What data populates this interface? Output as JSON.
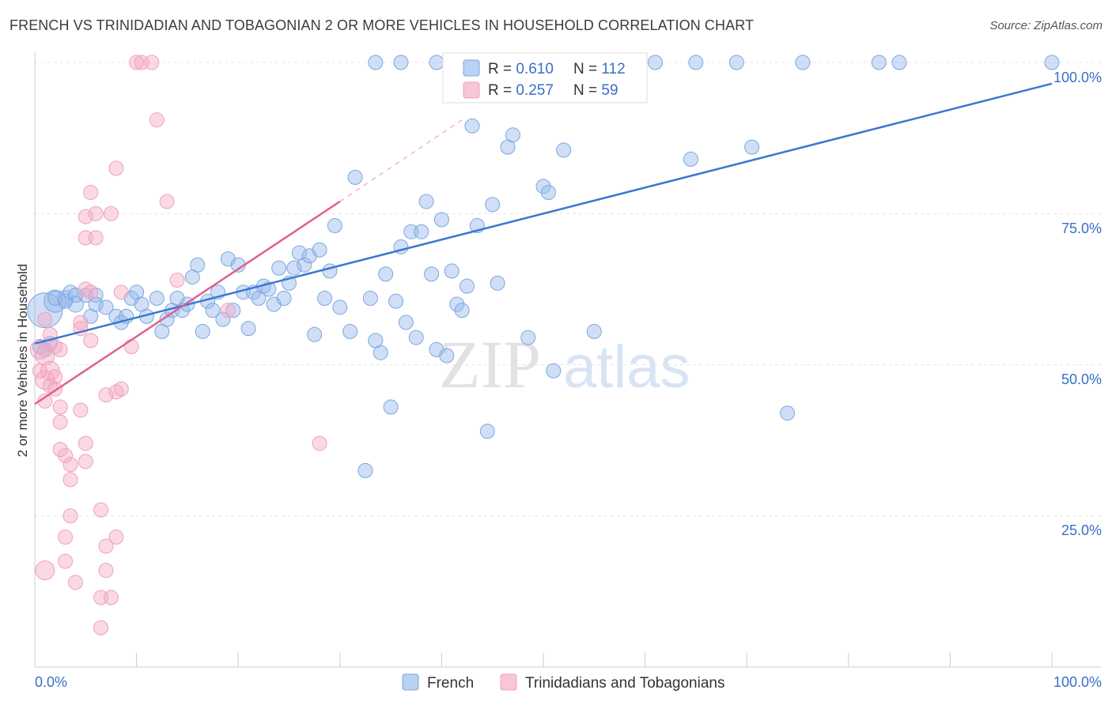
{
  "title": "FRENCH VS TRINIDADIAN AND TOBAGONIAN 2 OR MORE VEHICLES IN HOUSEHOLD CORRELATION CHART",
  "source": "Source: ZipAtlas.com",
  "watermark": {
    "zip": "ZIP",
    "atlas": "atlas"
  },
  "chart_data": {
    "type": "scatter",
    "ylabel": "2 or more Vehicles in Household",
    "xlim": [
      0,
      100
    ],
    "ylim": [
      0,
      100
    ],
    "x_tick_labels": [
      "0.0%",
      "100.0%"
    ],
    "y_ticks": [
      25,
      50,
      75,
      100
    ],
    "y_tick_labels": [
      "25.0%",
      "50.0%",
      "75.0%",
      "100.0%"
    ],
    "grid": true,
    "legend_position": "top-center",
    "stats": [
      {
        "r_label": "R = ",
        "r_value": "0.610",
        "n_label": "N = ",
        "n_value": "112"
      },
      {
        "r_label": "R = ",
        "r_value": "0.257",
        "n_label": "N = ",
        "n_value": "59"
      }
    ],
    "series": [
      {
        "name": "French",
        "color": "#7ba7e0",
        "line_color": "#3a78d0",
        "trend": {
          "x0": 0,
          "y0": 53.5,
          "x1": 100,
          "y1": 96.5
        },
        "points": [
          [
            1,
            59,
            22
          ],
          [
            2,
            60.5,
            14
          ],
          [
            3,
            61,
            10
          ],
          [
            4,
            60,
            10
          ],
          [
            5,
            61.5,
            9
          ],
          [
            6,
            61.5,
            9
          ],
          [
            5.5,
            58,
            9
          ],
          [
            6,
            60,
            9
          ],
          [
            7,
            59.5,
            9
          ],
          [
            8,
            58,
            9
          ],
          [
            8.5,
            57,
            9
          ],
          [
            9,
            58,
            9
          ],
          [
            9.5,
            61,
            9
          ],
          [
            10,
            62,
            9
          ],
          [
            10.5,
            60,
            9
          ],
          [
            11,
            58,
            9
          ],
          [
            12,
            61,
            9
          ],
          [
            12.5,
            55.5,
            9
          ],
          [
            13,
            57.5,
            9
          ],
          [
            13.5,
            59,
            9
          ],
          [
            14,
            61,
            9
          ],
          [
            14.5,
            59,
            9
          ],
          [
            15,
            60,
            9
          ],
          [
            15.5,
            64.5,
            9
          ],
          [
            16,
            66.5,
            9
          ],
          [
            16.5,
            55.5,
            9
          ],
          [
            17,
            60.5,
            9
          ],
          [
            17.5,
            59,
            9
          ],
          [
            18,
            62,
            9
          ],
          [
            18.5,
            57.5,
            9
          ],
          [
            19,
            67.5,
            9
          ],
          [
            19.5,
            59,
            9
          ],
          [
            20,
            66.5,
            9
          ],
          [
            20.5,
            62,
            9
          ],
          [
            21,
            56,
            9
          ],
          [
            21.5,
            62,
            9
          ],
          [
            22,
            61,
            9
          ],
          [
            22.5,
            63,
            9
          ],
          [
            23,
            62.5,
            9
          ],
          [
            23.5,
            60,
            9
          ],
          [
            24,
            66,
            9
          ],
          [
            24.5,
            61,
            9
          ],
          [
            25,
            63.5,
            9
          ],
          [
            25.5,
            66,
            9
          ],
          [
            26,
            68.5,
            9
          ],
          [
            26.5,
            66.5,
            9
          ],
          [
            27,
            68,
            9
          ],
          [
            27.5,
            55,
            9
          ],
          [
            28,
            69,
            9
          ],
          [
            28.5,
            61,
            9
          ],
          [
            29,
            65.5,
            9
          ],
          [
            29.5,
            73,
            9
          ],
          [
            30,
            59.5,
            9
          ],
          [
            31,
            55.5,
            9
          ],
          [
            31.5,
            81,
            9
          ],
          [
            32.5,
            32.5,
            9
          ],
          [
            33,
            61,
            9
          ],
          [
            33.5,
            54,
            9
          ],
          [
            34,
            52,
            9
          ],
          [
            34.5,
            65,
            9
          ],
          [
            35,
            43,
            9
          ],
          [
            35.5,
            60.5,
            9
          ],
          [
            36,
            69.5,
            9
          ],
          [
            36.5,
            57,
            9
          ],
          [
            37,
            72,
            9
          ],
          [
            37.5,
            54.5,
            9
          ],
          [
            38,
            72,
            9
          ],
          [
            38.5,
            77,
            9
          ],
          [
            39,
            65,
            9
          ],
          [
            39.5,
            52.5,
            9
          ],
          [
            40,
            74,
            9
          ],
          [
            40.5,
            51.5,
            9
          ],
          [
            41,
            65.5,
            9
          ],
          [
            41.5,
            60,
            9
          ],
          [
            42,
            59,
            9
          ],
          [
            42.5,
            63,
            9
          ],
          [
            43,
            89.5,
            9
          ],
          [
            43.5,
            73,
            9
          ],
          [
            44.5,
            39,
            9
          ],
          [
            45,
            76.5,
            9
          ],
          [
            45.5,
            63.5,
            9
          ],
          [
            46.5,
            86,
            9
          ],
          [
            47,
            88,
            9
          ],
          [
            48.5,
            54.5,
            9
          ],
          [
            50,
            79.5,
            9
          ],
          [
            50.5,
            78.5,
            9
          ],
          [
            51,
            49,
            9
          ],
          [
            52,
            85.5,
            9
          ],
          [
            53.5,
            100,
            9
          ],
          [
            55,
            55.5,
            9
          ],
          [
            57,
            100,
            9
          ],
          [
            61,
            100,
            9
          ],
          [
            64.5,
            84,
            9
          ],
          [
            65,
            100,
            9
          ],
          [
            69,
            100,
            9
          ],
          [
            70.5,
            86,
            9
          ],
          [
            74,
            42,
            9
          ],
          [
            75.5,
            100,
            9
          ],
          [
            83,
            100,
            9
          ],
          [
            85,
            100,
            9
          ],
          [
            100,
            100,
            9
          ],
          [
            0.5,
            53,
            9
          ],
          [
            1,
            52.5,
            9
          ],
          [
            1.5,
            53.5,
            9
          ],
          [
            2,
            61,
            9
          ],
          [
            3,
            60.5,
            9
          ],
          [
            3.5,
            62,
            9
          ],
          [
            4,
            61.5,
            9
          ],
          [
            33.5,
            100,
            9
          ],
          [
            36,
            100,
            9
          ],
          [
            39.5,
            100,
            9
          ],
          [
            46,
            100,
            9
          ]
        ]
      },
      {
        "name": "Trinidadians and Tobagonians",
        "color": "#f0a0bc",
        "line_color": "#e06090",
        "trend": {
          "x0": 0,
          "y0": 43.5,
          "x1": 30,
          "y1": 77
        },
        "trend_ext": {
          "x0": 30,
          "y0": 77,
          "x1": 42,
          "y1": 90.5
        },
        "points": [
          [
            0.5,
            52.5,
            12
          ],
          [
            1,
            51.5,
            12
          ],
          [
            1.5,
            49,
            12
          ],
          [
            1,
            47.5,
            12
          ],
          [
            1.5,
            46.5,
            9
          ],
          [
            2,
            46,
            9
          ],
          [
            2.5,
            43,
            9
          ],
          [
            1,
            57.5,
            9
          ],
          [
            2,
            53,
            9
          ],
          [
            2.5,
            52.5,
            9
          ],
          [
            2.5,
            40.5,
            9
          ],
          [
            3,
            35,
            9
          ],
          [
            3.5,
            33.5,
            9
          ],
          [
            3.5,
            31,
            9
          ],
          [
            3.5,
            25,
            9
          ],
          [
            3,
            21.5,
            9
          ],
          [
            3,
            17.5,
            9
          ],
          [
            1,
            16,
            12
          ],
          [
            4,
            14,
            9
          ],
          [
            4.5,
            56,
            9
          ],
          [
            4.5,
            57,
            9
          ],
          [
            4.5,
            42.5,
            9
          ],
          [
            5,
            62.5,
            9
          ],
          [
            5,
            74.5,
            9
          ],
          [
            5,
            71,
            9
          ],
          [
            5,
            37,
            9
          ],
          [
            5,
            34,
            9
          ],
          [
            5.5,
            78.5,
            9
          ],
          [
            5.5,
            62,
            9
          ],
          [
            5.5,
            54,
            9
          ],
          [
            6,
            75,
            9
          ],
          [
            6,
            71,
            9
          ],
          [
            6.5,
            26,
            9
          ],
          [
            6.5,
            6.5,
            9
          ],
          [
            6.5,
            11.5,
            9
          ],
          [
            7,
            45,
            9
          ],
          [
            7,
            20,
            9
          ],
          [
            7,
            16,
            9
          ],
          [
            7.5,
            75,
            9
          ],
          [
            7.5,
            11.5,
            9
          ],
          [
            8,
            82.5,
            9
          ],
          [
            8,
            45.5,
            9
          ],
          [
            8,
            21.5,
            9
          ],
          [
            8.5,
            62,
            9
          ],
          [
            8.5,
            46,
            9
          ],
          [
            9.5,
            53,
            9
          ],
          [
            10,
            100,
            9
          ],
          [
            10.5,
            100,
            9
          ],
          [
            11.5,
            100,
            9
          ],
          [
            12,
            90.5,
            9
          ],
          [
            13,
            77,
            9
          ],
          [
            14,
            64,
            9
          ],
          [
            19,
            59,
            9
          ],
          [
            28,
            37,
            9
          ],
          [
            1,
            44,
            9
          ],
          [
            2,
            48,
            9
          ],
          [
            1.5,
            55,
            9
          ],
          [
            0.5,
            49,
            9
          ],
          [
            2.5,
            36,
            9
          ]
        ]
      }
    ]
  }
}
